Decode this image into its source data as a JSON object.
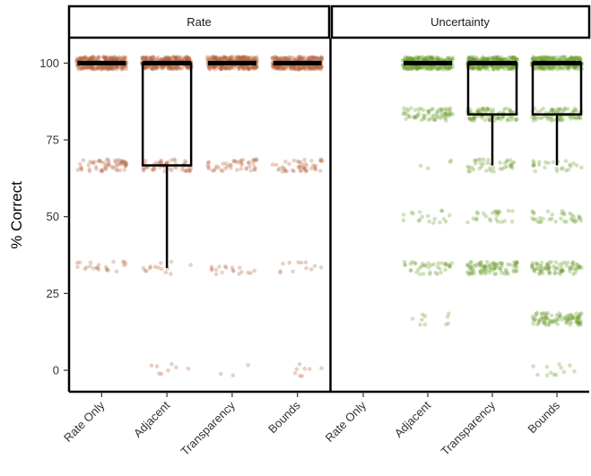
{
  "chart_data": {
    "type": "scatter",
    "subtype": "jittered strip plot with boxplots, faceted",
    "ylabel": "% Correct",
    "xlabel": "",
    "ylim": [
      -7,
      108
    ],
    "yticks": [
      0,
      25,
      50,
      75,
      100
    ],
    "categories": [
      "Rate Only",
      "Adjacent",
      "Transparency",
      "Bounds"
    ],
    "grid": false,
    "legend": "none",
    "facets": [
      {
        "label": "Rate",
        "color": "#b4653a",
        "levels": [
          {
            "y": 100,
            "counts": [
              300,
              300,
              300,
              300
            ]
          },
          {
            "y": 66.7,
            "counts": [
              60,
              55,
              45,
              45
            ]
          },
          {
            "y": 33.3,
            "counts": [
              22,
              14,
              18,
              12
            ]
          },
          {
            "y": 0,
            "counts": [
              0,
              8,
              3,
              8
            ]
          }
        ],
        "boxes": [
          {
            "category": "Rate Only",
            "min": 100,
            "q1": 100,
            "median": 100,
            "q3": 100,
            "max": 100
          },
          {
            "category": "Adjacent",
            "min": 33.3,
            "q1": 66.7,
            "median": 100,
            "q3": 100,
            "max": 100
          },
          {
            "category": "Transparency",
            "min": 100,
            "q1": 100,
            "median": 100,
            "q3": 100,
            "max": 100
          },
          {
            "category": "Bounds",
            "min": 100,
            "q1": 100,
            "median": 100,
            "q3": 100,
            "max": 100
          }
        ]
      },
      {
        "label": "Uncertainty",
        "color": "#6a9a2a",
        "levels": [
          {
            "y": 100,
            "counts": [
              0,
              250,
              260,
              260
            ]
          },
          {
            "y": 83.3,
            "counts": [
              0,
              70,
              90,
              80
            ]
          },
          {
            "y": 66.7,
            "counts": [
              0,
              4,
              40,
              25
            ]
          },
          {
            "y": 50,
            "counts": [
              0,
              18,
              25,
              35
            ]
          },
          {
            "y": 33.3,
            "counts": [
              0,
              40,
              90,
              80
            ]
          },
          {
            "y": 16.7,
            "counts": [
              0,
              10,
              0,
              95
            ]
          },
          {
            "y": 0,
            "counts": [
              0,
              0,
              0,
              12
            ]
          }
        ],
        "boxes": [
          {
            "category": "Adjacent",
            "min": 100,
            "q1": 100,
            "median": 100,
            "q3": 100,
            "max": 100
          },
          {
            "category": "Transparency",
            "min": 66.7,
            "q1": 83.3,
            "median": 100,
            "q3": 100,
            "max": 100
          },
          {
            "category": "Bounds",
            "min": 66.7,
            "q1": 83.3,
            "median": 100,
            "q3": 100,
            "max": 100
          }
        ]
      }
    ]
  }
}
